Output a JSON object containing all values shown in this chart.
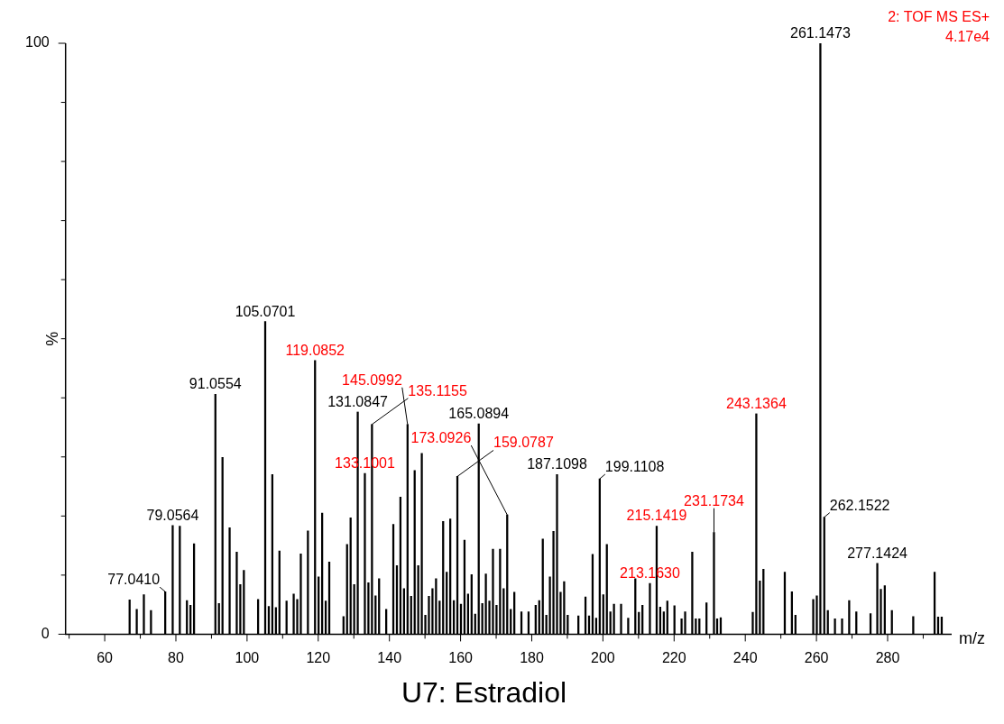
{
  "chart_data": {
    "type": "bar",
    "title": "U7: Estradiol",
    "xlabel": "m/z",
    "ylabel": "%",
    "annotations": [
      "2: TOF MS ES+",
      "4.17e4",
      {
        "text": "77.0410",
        "x": 77.0,
        "y": 7.2
      },
      {
        "text": "79.0564",
        "x": 79.1,
        "y": 18.4
      },
      {
        "text": "91.0554",
        "x": 91.1,
        "y": 40.6
      },
      {
        "text": "105.0701",
        "x": 105.1,
        "y": 52.9
      },
      {
        "text": "119.0852",
        "x": 119.1,
        "y": 46.3
      },
      {
        "text": "131.0847",
        "x": 131.1,
        "y": 37.6
      },
      {
        "text": "133.1001",
        "x": 133.1,
        "y": 27.2
      },
      {
        "text": "135.1155",
        "x": 135.1,
        "y": 35.5
      },
      {
        "text": "145.0992",
        "x": 145.1,
        "y": 35.5
      },
      {
        "text": "159.0787",
        "x": 159.1,
        "y": 26.7
      },
      {
        "text": "165.0894",
        "x": 165.1,
        "y": 35.6
      },
      {
        "text": "173.0926",
        "x": 173.1,
        "y": 20.2
      },
      {
        "text": "187.1098",
        "x": 187.1,
        "y": 27.0
      },
      {
        "text": "199.1108",
        "x": 199.1,
        "y": 26.3
      },
      {
        "text": "213.1630",
        "x": 213.2,
        "y": 8.6
      },
      {
        "text": "215.1419",
        "x": 215.1,
        "y": 18.3
      },
      {
        "text": "231.1734",
        "x": 231.2,
        "y": 17.2
      },
      {
        "text": "243.1364",
        "x": 243.1,
        "y": 37.3
      },
      {
        "text": "261.1473",
        "x": 261.1,
        "y": 100
      },
      {
        "text": "262.1522",
        "x": 262.2,
        "y": 19.8
      },
      {
        "text": "277.1424",
        "x": 277.1,
        "y": 12.0
      }
    ],
    "xlim": [
      49,
      298
    ],
    "ylim": [
      0,
      100
    ],
    "xticks": [
      {
        "value": 50,
        "label": null
      },
      60,
      {
        "value": 70,
        "label": null
      },
      80,
      {
        "value": 90,
        "label": null
      },
      100,
      {
        "value": 110,
        "label": null
      },
      120,
      {
        "value": 130,
        "label": null
      },
      140,
      {
        "value": 150,
        "label": null
      },
      160,
      {
        "value": 170,
        "label": null
      },
      180,
      {
        "value": 190,
        "label": null
      },
      200,
      {
        "value": 210,
        "label": null
      },
      220,
      {
        "value": 230,
        "label": null
      },
      240,
      {
        "value": 250,
        "label": null
      },
      260,
      {
        "value": 270,
        "label": null
      },
      280,
      {
        "value": 290,
        "label": null
      }
    ],
    "yticks": [
      0,
      {
        "value": 10,
        "label": null
      },
      {
        "value": 20,
        "label": null
      },
      {
        "value": 30,
        "label": null
      },
      {
        "value": 40,
        "label": null
      },
      {
        "value": 50,
        "label": null
      },
      {
        "value": 60,
        "label": null
      },
      {
        "value": 70,
        "label": null
      },
      {
        "value": 80,
        "label": null
      },
      {
        "value": 90,
        "label": null
      },
      100
    ],
    "grid": false,
    "series": [
      {
        "color": "#000000",
        "x": [
          67,
          69,
          71,
          73,
          77.0,
          79.1,
          81.1,
          83.1,
          84.1,
          85.1,
          91.1,
          92.1,
          93.1,
          95.1,
          97.1,
          98.1,
          99.1,
          103.1,
          105.1,
          106.1,
          107.1,
          108.1,
          109.1,
          111.1,
          113.1,
          114.1,
          115.1,
          117.1,
          120.1,
          121.1,
          122.1,
          123.1,
          127.1,
          128.1,
          129.1,
          130.1,
          131.1,
          134.1,
          136.1,
          137.1,
          139.1,
          141.1,
          142.1,
          143.1,
          144.1,
          146.1,
          147.1,
          148.1,
          149.1,
          150.1,
          151.1,
          152.1,
          153.1,
          154.1,
          155.1,
          156.1,
          157.1,
          158.1,
          160.1,
          161.1,
          162.1,
          163.1,
          164.1,
          165.1,
          166.1,
          167.1,
          168.1,
          169.1,
          170.1,
          171.1,
          172.1,
          174.1,
          175.1,
          177.1,
          179.1,
          181.1,
          182.1,
          183.1,
          184.1,
          185.1,
          186.1,
          187.1,
          188.1,
          189.1,
          190.1,
          193.1,
          195.1,
          196.1,
          197.1,
          198.1,
          199.1,
          200.1,
          201.1,
          202.1,
          203.1,
          205.1,
          207.1,
          209.1,
          210.1,
          211.1,
          216.1,
          217.1,
          218.1,
          220.1,
          222.1,
          223.1,
          225.1,
          226.1,
          227.1,
          229.1,
          232.1,
          233.1,
          242.1,
          244.1,
          245.1,
          251.1,
          253.1,
          254.1,
          259.1,
          260.1,
          261.1,
          262.2,
          263.2,
          265.2,
          267.2,
          269.2,
          271.2,
          275.2,
          277.1,
          278.1,
          279.2,
          281.2,
          287.2,
          293.2,
          294.2,
          295.2
        ],
        "values": [
          5.8,
          4.2,
          6.7,
          4.0,
          7.2,
          18.4,
          18.3,
          5.7,
          4.9,
          15.3,
          40.6,
          5.2,
          29.9,
          18.0,
          13.9,
          8.4,
          10.8,
          5.9,
          52.9,
          4.7,
          27.0,
          4.5,
          14.1,
          5.6,
          6.8,
          5.9,
          13.6,
          17.5,
          9.7,
          20.5,
          5.6,
          12.2,
          3.0,
          15.2,
          19.7,
          8.4,
          37.6,
          8.7,
          6.5,
          9.4,
          4.2,
          18.6,
          11.6,
          23.2,
          7.7,
          6.4,
          27.7,
          11.6,
          30.6,
          3.2,
          6.4,
          7.7,
          9.4,
          5.6,
          19.1,
          10.5,
          19.5,
          5.7,
          5.1,
          15.9,
          6.8,
          10.1,
          3.4,
          35.6,
          5.2,
          10.2,
          5.6,
          14.4,
          4.9,
          14.4,
          7.7,
          4.2,
          7.1,
          3.8,
          3.8,
          4.9,
          5.7,
          16.1,
          3.2,
          9.7,
          17.4,
          27.0,
          7.1,
          8.9,
          3.2,
          3.1,
          6.3,
          3.1,
          13.5,
          2.7,
          26.3,
          6.7,
          15.2,
          3.8,
          5.1,
          5.1,
          2.7,
          9.4,
          3.7,
          4.9,
          4.6,
          3.8,
          5.6,
          4.8,
          2.6,
          3.8,
          13.9,
          2.6,
          2.6,
          5.3,
          2.6,
          2.8,
          3.7,
          9.0,
          11.0,
          10.5,
          7.2,
          3.2,
          5.9,
          6.5,
          100,
          19.8,
          4.0,
          2.6,
          2.6,
          5.7,
          3.8,
          3.5,
          12.0,
          7.6,
          8.2,
          4.0,
          3.0,
          10.5,
          2.9,
          2.9
        ]
      },
      {
        "color": "#000000",
        "x": [
          119.1,
          133.1,
          135.1,
          145.1,
          159.1,
          173.1,
          213.2,
          215.1,
          231.2,
          243.1
        ],
        "values": [
          46.3,
          27.2,
          35.5,
          35.5,
          26.7,
          20.2,
          8.6,
          18.3,
          17.2,
          37.3
        ]
      }
    ]
  }
}
